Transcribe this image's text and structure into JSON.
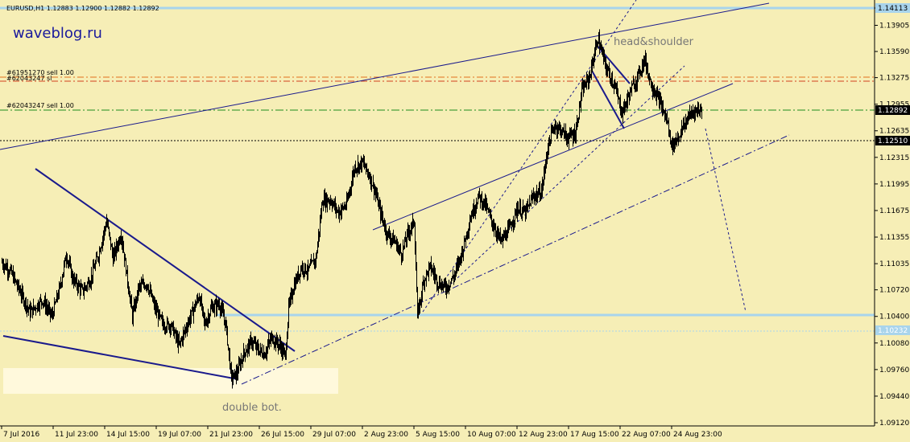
{
  "header": {
    "symbol_info": "EURUSD,H1  1.12883 1.12900 1.12882 1.12892",
    "brand": "waveblog.ru"
  },
  "colors": {
    "background": "#f6eeb6",
    "candles": "#000000",
    "trendline": "#1a1a8c",
    "support": "#a8d4ec",
    "order_red": "#d2401e",
    "order_green": "#1e8c1e",
    "zone": "#fff9dc"
  },
  "chart_data": {
    "type": "line",
    "title": "EURUSD,H1  1.12883 1.12900 1.12882 1.12892",
    "ylim": [
      1.0905,
      1.1441
    ],
    "y_ticks": [
      "1.14113",
      "1.13905",
      "1.13590",
      "1.13275",
      "1.12955",
      "1.12635",
      "1.12315",
      "1.11995",
      "1.11675",
      "1.11355",
      "1.11035",
      "1.10720",
      "1.10400",
      "1.10080",
      "1.09760",
      "1.09440",
      "1.09120"
    ],
    "x_ticks": [
      "7 Jul 2016",
      "11 Jul 23:00",
      "14 Jul 15:00",
      "19 Jul 07:00",
      "21 Jul 23:00",
      "26 Jul 15:00",
      "29 Jul 07:00",
      "2 Aug 23:00",
      "5 Aug 15:00",
      "10 Aug 07:00",
      "12 Aug 23:00",
      "17 Aug 15:00",
      "22 Aug 07:00",
      "24 Aug 23:00"
    ],
    "x_tick_pos": [
      0,
      64,
      128,
      192,
      256,
      320,
      384,
      448,
      512,
      576,
      640,
      704,
      768,
      832
    ],
    "bar_count": 870,
    "price_path": [
      [
        0,
        1.1105
      ],
      [
        10,
        1.1095
      ],
      [
        20,
        1.1075
      ],
      [
        35,
        1.1045
      ],
      [
        50,
        1.106
      ],
      [
        62,
        1.104
      ],
      [
        72,
        1.1075
      ],
      [
        80,
        1.1115
      ],
      [
        88,
        1.1085
      ],
      [
        100,
        1.107
      ],
      [
        110,
        1.1085
      ],
      [
        120,
        1.1115
      ],
      [
        130,
        1.1155
      ],
      [
        138,
        1.111
      ],
      [
        148,
        1.114
      ],
      [
        155,
        1.109
      ],
      [
        162,
        1.104
      ],
      [
        170,
        1.1075
      ],
      [
        180,
        1.108
      ],
      [
        190,
        1.105
      ],
      [
        200,
        1.103
      ],
      [
        210,
        1.103
      ],
      [
        220,
        1.1005
      ],
      [
        232,
        1.1035
      ],
      [
        245,
        1.1065
      ],
      [
        252,
        1.103
      ],
      [
        260,
        1.105
      ],
      [
        270,
        1.1055
      ],
      [
        278,
        1.103
      ],
      [
        285,
        1.0965
      ],
      [
        292,
        1.0972
      ],
      [
        300,
        1.0995
      ],
      [
        310,
        1.101
      ],
      [
        318,
        1.1
      ],
      [
        326,
        1.0995
      ],
      [
        335,
        1.1015
      ],
      [
        345,
        1.1005
      ],
      [
        352,
        1.0992
      ],
      [
        356,
        1.105
      ],
      [
        362,
        1.1075
      ],
      [
        372,
        1.11
      ],
      [
        380,
        1.1095
      ],
      [
        390,
        1.111
      ],
      [
        398,
        1.118
      ],
      [
        408,
        1.118
      ],
      [
        418,
        1.1165
      ],
      [
        428,
        1.1175
      ],
      [
        438,
        1.122
      ],
      [
        448,
        1.1225
      ],
      [
        456,
        1.121
      ],
      [
        462,
        1.1195
      ],
      [
        470,
        1.1165
      ],
      [
        478,
        1.114
      ],
      [
        488,
        1.113
      ],
      [
        496,
        1.1115
      ],
      [
        504,
        1.114
      ],
      [
        512,
        1.1155
      ],
      [
        516,
        1.104
      ],
      [
        524,
        1.1085
      ],
      [
        532,
        1.11
      ],
      [
        542,
        1.108
      ],
      [
        552,
        1.1075
      ],
      [
        562,
        1.109
      ],
      [
        572,
        1.112
      ],
      [
        582,
        1.116
      ],
      [
        592,
        1.1185
      ],
      [
        600,
        1.1175
      ],
      [
        610,
        1.115
      ],
      [
        620,
        1.113
      ],
      [
        630,
        1.1145
      ],
      [
        640,
        1.117
      ],
      [
        650,
        1.1165
      ],
      [
        660,
        1.1185
      ],
      [
        670,
        1.119
      ],
      [
        678,
        1.1245
      ],
      [
        686,
        1.127
      ],
      [
        694,
        1.1265
      ],
      [
        702,
        1.1255
      ],
      [
        712,
        1.126
      ],
      [
        720,
        1.131
      ],
      [
        730,
        1.133
      ],
      [
        740,
        1.1375
      ],
      [
        750,
        1.134
      ],
      [
        760,
        1.132
      ],
      [
        770,
        1.1285
      ],
      [
        780,
        1.131
      ],
      [
        790,
        1.133
      ],
      [
        798,
        1.135
      ],
      [
        806,
        1.132
      ],
      [
        816,
        1.13
      ],
      [
        826,
        1.1275
      ],
      [
        832,
        1.1245
      ],
      [
        842,
        1.126
      ],
      [
        852,
        1.128
      ],
      [
        860,
        1.1288
      ],
      [
        870,
        1.1289
      ]
    ],
    "horizontal_levels": [
      {
        "price": 1.14113,
        "label": "1.14113",
        "style": "solid-blue-thick"
      },
      {
        "price": 1.1329,
        "style": "dashdot-orange"
      },
      {
        "price": 1.1323,
        "style": "dashdot-red"
      },
      {
        "price": 1.12892,
        "label": "1.12892",
        "style": "dashdot-green"
      },
      {
        "price": 1.1251,
        "label": "1.12510",
        "style": "dotted-black"
      },
      {
        "price": 1.10435,
        "style": "solid-blue-thick"
      },
      {
        "price": 1.10232,
        "label": "1.10232",
        "style": "dotted-blue"
      }
    ],
    "order_labels": [
      {
        "text": "#61951270 sell 1.00",
        "price": 1.133
      },
      {
        "text": "#62043247 sl",
        "price": 1.1324
      },
      {
        "text": "#62043247 sell 1.00",
        "price": 1.12955
      }
    ],
    "annotations": [
      {
        "text": "head&shoulder",
        "x": 810,
        "price": 1.138
      },
      {
        "text": "double bot.",
        "x": 312,
        "price": 1.0928
      }
    ]
  }
}
